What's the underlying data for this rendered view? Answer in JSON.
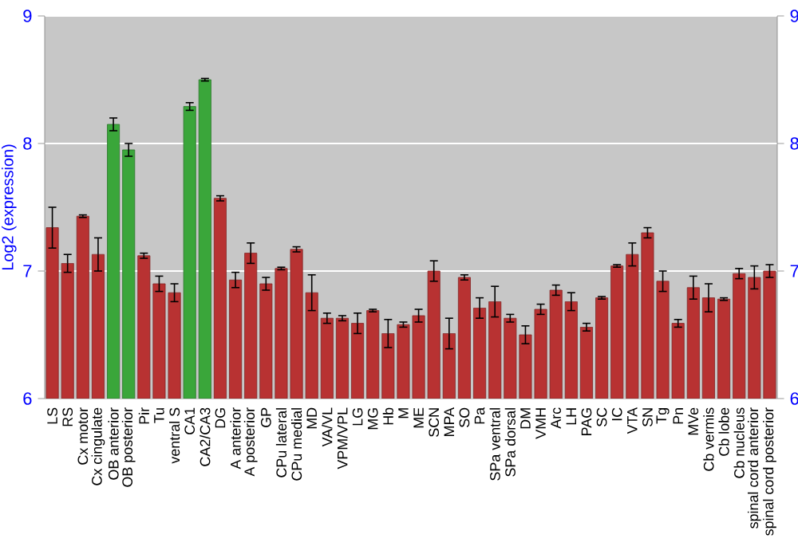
{
  "chart_data": {
    "type": "bar",
    "ylabel": "Log2 (expression)",
    "categories": [
      "LS",
      "RS",
      "Cx motor",
      "Cx cingulate",
      "OB anterior",
      "OB posterior",
      "Pir",
      "Tu",
      "ventral S",
      "CA1",
      "CA2/CA3",
      "DG",
      "A anterior",
      "A posterior",
      "GP",
      "CPu lateral",
      "CPu medial",
      "MD",
      "VA/VL",
      "VPM/VPL",
      "LG",
      "MG",
      "Hb",
      "M",
      "ME",
      "SCN",
      "MPA",
      "SO",
      "Pa",
      "SPa ventral",
      "SPa dorsal",
      "DM",
      "VMH",
      "Arc",
      "LH",
      "PAG",
      "SC",
      "IC",
      "VTA",
      "SN",
      "Tg",
      "Pn",
      "MVe",
      "Cb vermis",
      "Cb lobe",
      "Cb nucleus",
      "spinal cord anterior",
      "spinal cord posterior"
    ],
    "values": [
      7.34,
      7.06,
      7.43,
      7.13,
      8.15,
      7.95,
      7.12,
      6.9,
      6.83,
      8.29,
      8.5,
      7.57,
      6.93,
      7.14,
      6.9,
      7.02,
      7.17,
      6.83,
      6.63,
      6.63,
      6.59,
      6.69,
      6.51,
      6.58,
      6.65,
      7.0,
      6.51,
      6.95,
      6.71,
      6.76,
      6.63,
      6.5,
      6.7,
      6.85,
      6.76,
      6.56,
      6.79,
      7.04,
      7.13,
      7.3,
      6.92,
      6.59,
      6.87,
      6.79,
      6.78,
      6.98,
      6.95,
      7.0
    ],
    "errors": [
      0.16,
      0.07,
      0.01,
      0.13,
      0.05,
      0.05,
      0.02,
      0.06,
      0.07,
      0.03,
      0.01,
      0.02,
      0.06,
      0.08,
      0.05,
      0.01,
      0.02,
      0.14,
      0.04,
      0.02,
      0.08,
      0.01,
      0.11,
      0.02,
      0.05,
      0.08,
      0.12,
      0.02,
      0.08,
      0.12,
      0.03,
      0.07,
      0.04,
      0.04,
      0.07,
      0.03,
      0.01,
      0.01,
      0.09,
      0.04,
      0.08,
      0.03,
      0.09,
      0.11,
      0.01,
      0.04,
      0.09,
      0.05
    ],
    "colors": [
      "#b83232",
      "#b83232",
      "#b83232",
      "#b83232",
      "#3aa63a",
      "#3aa63a",
      "#b83232",
      "#b83232",
      "#b83232",
      "#3aa63a",
      "#3aa63a",
      "#b83232",
      "#b83232",
      "#b83232",
      "#b83232",
      "#b83232",
      "#b83232",
      "#b83232",
      "#b83232",
      "#b83232",
      "#b83232",
      "#b83232",
      "#b83232",
      "#b83232",
      "#b83232",
      "#b83232",
      "#b83232",
      "#b83232",
      "#b83232",
      "#b83232",
      "#b83232",
      "#b83232",
      "#b83232",
      "#b83232",
      "#b83232",
      "#b83232",
      "#b83232",
      "#b83232",
      "#b83232",
      "#b83232",
      "#b83232",
      "#b83232",
      "#b83232",
      "#b83232",
      "#b83232",
      "#b83232",
      "#b83232",
      "#b83232"
    ],
    "ylim": [
      6,
      9
    ],
    "yticks": [
      6,
      7,
      8,
      9
    ],
    "y2lim": [
      6,
      9
    ],
    "y2ticks": [
      6,
      7,
      8,
      9
    ],
    "grid": "y"
  }
}
